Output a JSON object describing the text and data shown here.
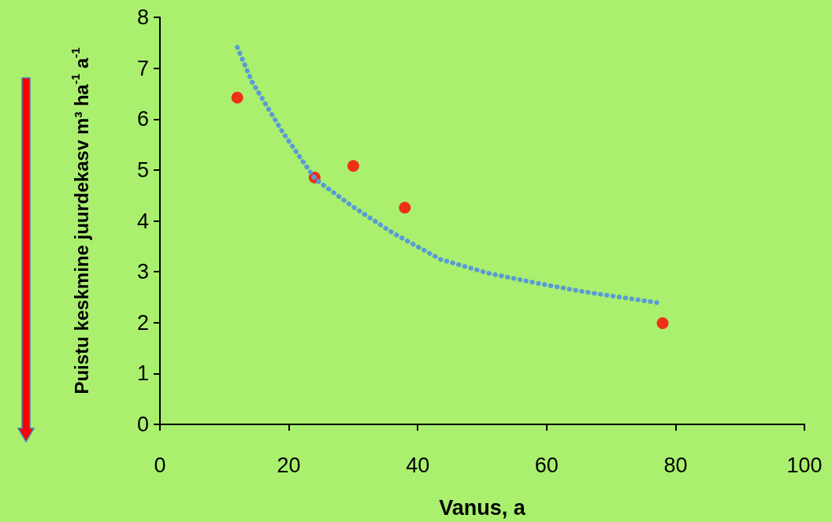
{
  "chart_data": {
    "type": "scatter",
    "xlabel": "Vanus, a",
    "ylabel": "Puistu keskmine juurdekasv m³ ha$^{-1}$ a$^{-1}$",
    "x": [
      12,
      24,
      30,
      38,
      78
    ],
    "series": [
      {
        "color": "#ff0000",
        "marker": "circle",
        "values": [
          6.42,
          4.85,
          5.08,
          4.26,
          1.99
        ]
      },
      {
        "type": "line",
        "color": "#5b9bd5",
        "line_style": "dotted",
        "marker": "none",
        "x": [
          12,
          14.3,
          19.2,
          24.1,
          29.8,
          36.3,
          43.6,
          51,
          58.3,
          65.6,
          73,
          77.3
        ],
        "values": [
          7.41,
          6.73,
          5.71,
          4.82,
          4.29,
          3.75,
          3.24,
          2.97,
          2.78,
          2.61,
          2.47,
          2.39
        ]
      }
    ],
    "xlim": [
      0,
      100
    ],
    "xticks": [
      0,
      20,
      40,
      60,
      80,
      100
    ],
    "ylim": [
      0,
      8
    ],
    "yticks": [
      0,
      1,
      2,
      3,
      4,
      5,
      6,
      7,
      8
    ],
    "grid": false
  }
}
